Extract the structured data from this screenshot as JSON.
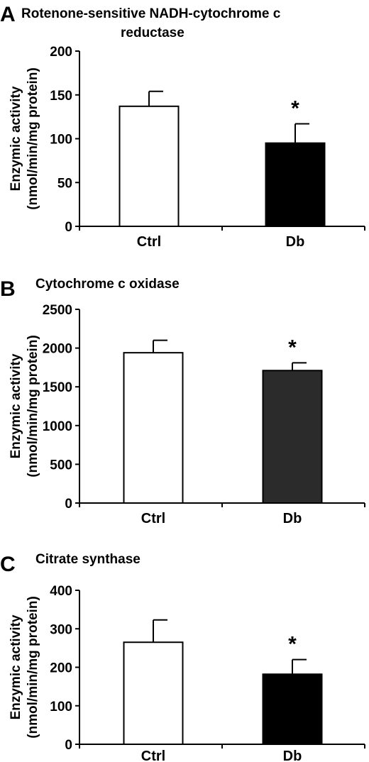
{
  "chart_data": [
    {
      "panel": "A",
      "type": "bar",
      "title_lines": [
        "Rotenone-sensitive NADH-cytochrome c",
        "reductase"
      ],
      "ylabel_lines": [
        "Enzymic activity",
        "(nmol/min/mg protein)"
      ],
      "categories": [
        "Ctrl",
        "Db"
      ],
      "values": [
        137,
        95
      ],
      "errors": [
        17,
        22
      ],
      "bar_colors": [
        "#ffffff",
        "#000000"
      ],
      "significance": [
        "",
        "*"
      ],
      "ylim": [
        0,
        200
      ],
      "yticks": [
        0,
        50,
        100,
        150,
        200
      ]
    },
    {
      "panel": "B",
      "type": "bar",
      "title_lines": [
        "Cytochrome c oxidase"
      ],
      "ylabel_lines": [
        "Enzymic activity",
        "(nmol/min/mg protein)"
      ],
      "categories": [
        "Ctrl",
        "Db"
      ],
      "values": [
        1940,
        1710
      ],
      "errors": [
        160,
        100
      ],
      "bar_colors": [
        "#ffffff",
        "#2b2b2b"
      ],
      "significance": [
        "",
        "*"
      ],
      "ylim": [
        0,
        2500
      ],
      "yticks": [
        0,
        500,
        1000,
        1500,
        2000,
        2500
      ]
    },
    {
      "panel": "C",
      "type": "bar",
      "title_lines": [
        "Citrate synthase"
      ],
      "ylabel_lines": [
        "Enzymic activity",
        "(nmol/min/mg protein)"
      ],
      "categories": [
        "Ctrl",
        "Db"
      ],
      "values": [
        265,
        182
      ],
      "errors": [
        58,
        38
      ],
      "bar_colors": [
        "#ffffff",
        "#000000"
      ],
      "significance": [
        "",
        "*"
      ],
      "ylim": [
        0,
        400
      ],
      "yticks": [
        0,
        100,
        200,
        300,
        400
      ]
    }
  ]
}
